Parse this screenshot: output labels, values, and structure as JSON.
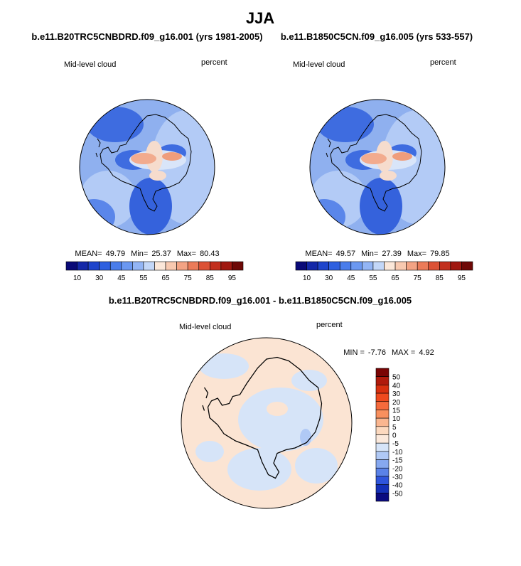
{
  "title": "JJA",
  "panels": [
    {
      "title": "b.e11.B20TRC5CNBDRD.f09_g16.001 (yrs 1981-2005)",
      "variable": "Mid-level cloud",
      "units": "percent",
      "stats": [
        {
          "label": "MEAN=",
          "value": 49.79
        },
        {
          "label": "Min=",
          "value": 25.37
        },
        {
          "label": "Max=",
          "value": 80.43
        }
      ],
      "colorbar": {
        "labels": [
          10,
          30,
          45,
          55,
          65,
          75,
          85,
          95
        ],
        "colors": [
          "#0a0a78",
          "#1428a8",
          "#1f45cc",
          "#2f60e0",
          "#4a7deb",
          "#6b98f1",
          "#93b5f5",
          "#c3d7f8",
          "#fbe7d9",
          "#f8c9b0",
          "#f3a384",
          "#eb7b59",
          "#dc5236",
          "#c22f1d",
          "#a01810",
          "#6e0806"
        ]
      }
    },
    {
      "title": "b.e11.B1850C5CN.f09_g16.005 (yrs 533-557)",
      "variable": "Mid-level cloud",
      "units": "percent",
      "stats": [
        {
          "label": "MEAN=",
          "value": 49.57
        },
        {
          "label": "Min=",
          "value": 27.39
        },
        {
          "label": "Max=",
          "value": 79.85
        }
      ],
      "colorbar": {
        "labels": [
          10,
          30,
          45,
          55,
          65,
          75,
          85,
          95
        ],
        "colors": [
          "#0a0a78",
          "#1428a8",
          "#1f45cc",
          "#2f60e0",
          "#4a7deb",
          "#6b98f1",
          "#93b5f5",
          "#c3d7f8",
          "#fbe7d9",
          "#f8c9b0",
          "#f3a384",
          "#eb7b59",
          "#dc5236",
          "#c22f1d",
          "#a01810",
          "#6e0806"
        ]
      }
    }
  ],
  "difference": {
    "title": "b.e11.B20TRC5CNBDRD.f09_g16.001 - b.e11.B1850C5CN.f09_g16.005",
    "variable": "Mid-level cloud",
    "units": "percent",
    "stats": [
      {
        "label": "MIN =",
        "value": -7.76
      },
      {
        "label": "MAX =",
        "value": 4.92
      }
    ],
    "colorbar": {
      "labels": [
        50,
        40,
        30,
        20,
        15,
        10,
        5,
        0,
        -5,
        -10,
        -15,
        -20,
        -30,
        -40,
        -50
      ],
      "colors": [
        "#7a0404",
        "#b01a0c",
        "#d8300f",
        "#ef4a1e",
        "#f56a3c",
        "#f8905e",
        "#fab690",
        "#fcd9bf",
        "#fbe9dc",
        "#d6e4f8",
        "#b0c9f5",
        "#86a8f0",
        "#5a82e8",
        "#2f55dc",
        "#1430b8",
        "#0a0a80"
      ]
    }
  }
}
